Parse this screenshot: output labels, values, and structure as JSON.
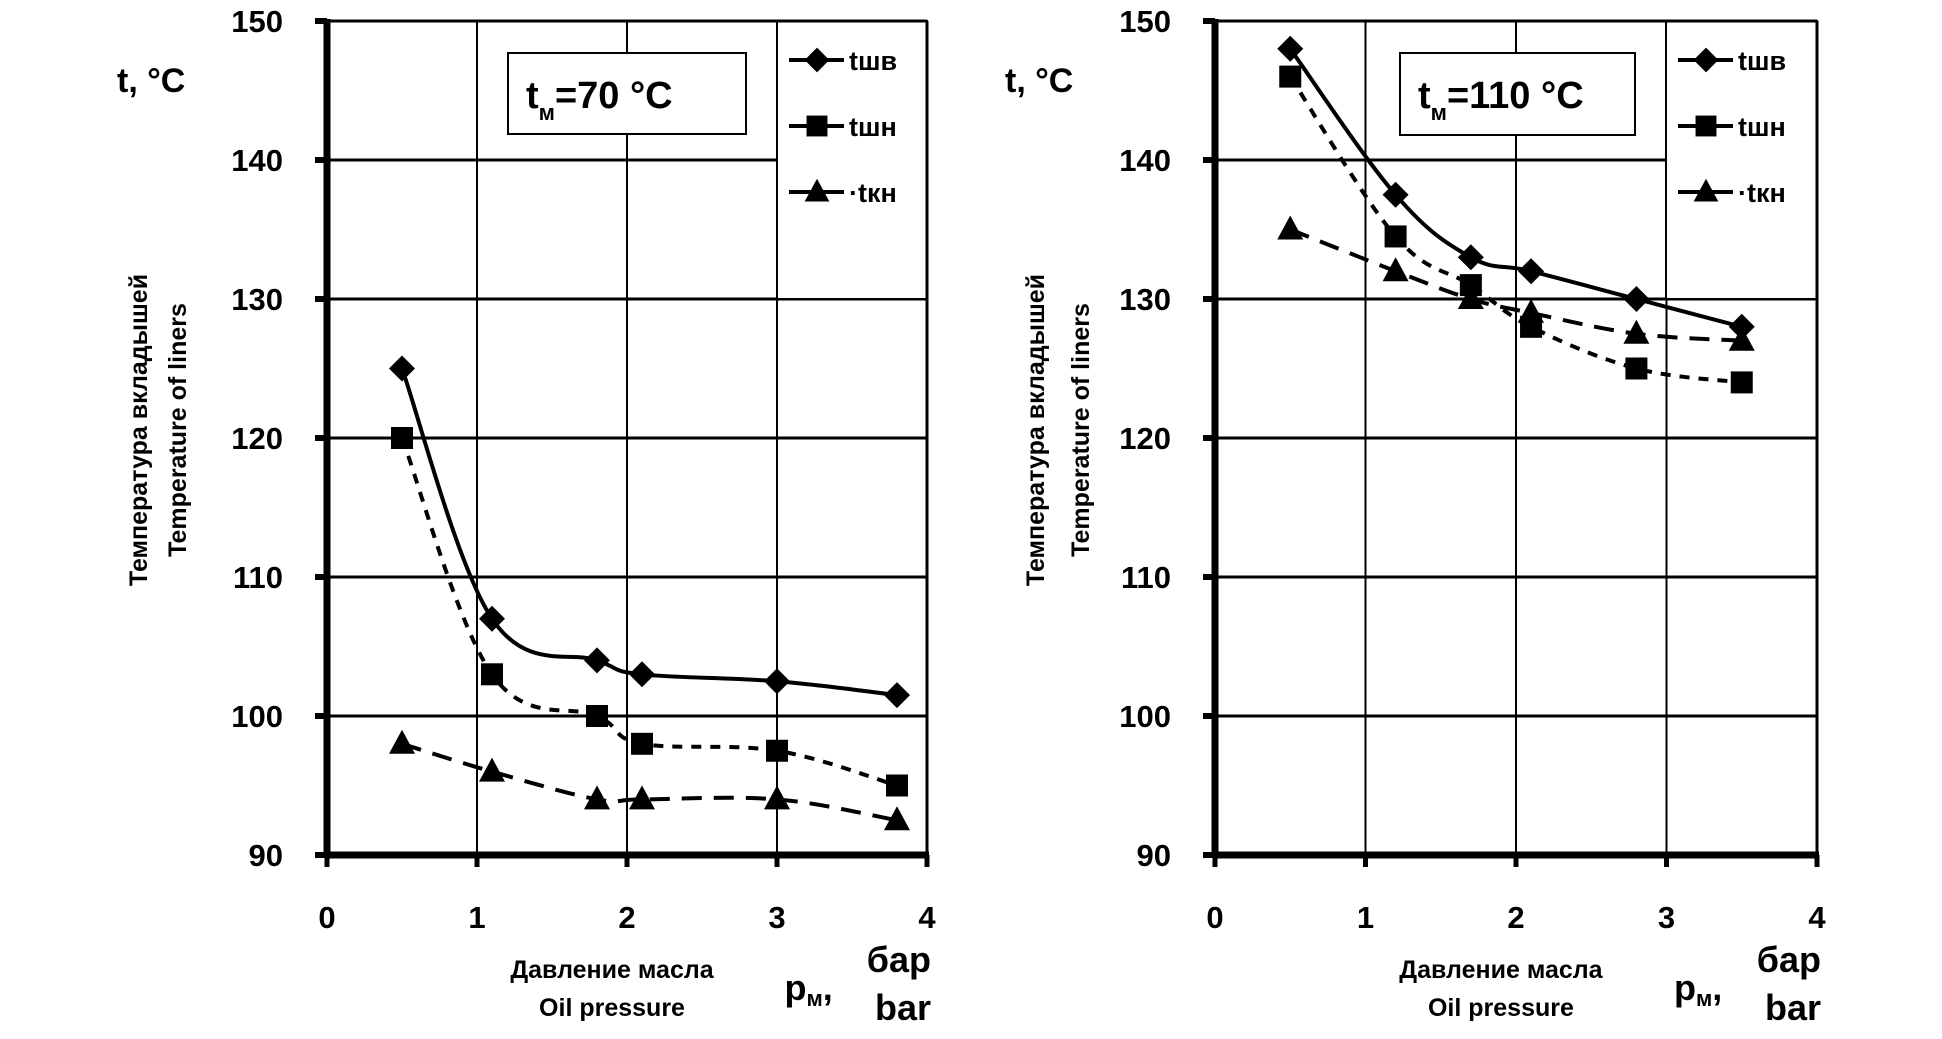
{
  "chart_data": [
    {
      "type": "line",
      "title": "",
      "annotation": {
        "main": "t",
        "subscript": "м",
        "rest": "=70 °C"
      },
      "ylabel_unit": "t, °C",
      "ylabel_lines": [
        "Температура вкладышей",
        "Temperature of liners"
      ],
      "xlabel_lines": [
        "Давление масла",
        "Oil pressure"
      ],
      "xlabel_symbol": {
        "main": "p",
        "subscript": "м",
        "rest": ","
      },
      "xlabel_units": [
        "бар",
        "bar"
      ],
      "xlim": [
        0,
        4
      ],
      "ylim": [
        90,
        150
      ],
      "xticks": [
        "0",
        "1",
        "2",
        "3",
        "4"
      ],
      "yticks": [
        "90",
        "100",
        "110",
        "120",
        "130",
        "140",
        "150"
      ],
      "grid": true,
      "legend_position": "top-right",
      "series": [
        {
          "name": "tшв",
          "marker": "diamond",
          "line": "solid",
          "x": [
            0.5,
            1.1,
            1.8,
            2.1,
            3.0,
            3.8
          ],
          "values": [
            125,
            107,
            104,
            103,
            102.5,
            101.5
          ]
        },
        {
          "name": "tшн",
          "marker": "square",
          "line": "short-dash",
          "x": [
            0.5,
            1.1,
            1.8,
            2.1,
            3.0,
            3.8
          ],
          "values": [
            120,
            103,
            100,
            98,
            97.5,
            95
          ]
        },
        {
          "name": "tкн",
          "marker": "triangle",
          "line": "long-dash",
          "x": [
            0.5,
            1.1,
            1.8,
            2.1,
            3.0,
            3.8
          ],
          "values": [
            98,
            96,
            94,
            94,
            94,
            92.5
          ]
        }
      ]
    },
    {
      "type": "line",
      "title": "",
      "annotation": {
        "main": "t",
        "subscript": "м",
        "rest": "=110 °C"
      },
      "ylabel_unit": "t, °C",
      "ylabel_lines": [
        "Температура вкладышей",
        "Temperature of liners"
      ],
      "xlabel_lines": [
        "Давление масла",
        "Oil pressure"
      ],
      "xlabel_symbol": {
        "main": "p",
        "subscript": "м",
        "rest": ","
      },
      "xlabel_units": [
        "бар",
        "bar"
      ],
      "xlim": [
        0,
        4
      ],
      "ylim": [
        90,
        150
      ],
      "xticks": [
        "0",
        "1",
        "2",
        "3",
        "4"
      ],
      "yticks": [
        "90",
        "100",
        "110",
        "120",
        "130",
        "140",
        "150"
      ],
      "grid": true,
      "legend_position": "top-right",
      "series": [
        {
          "name": "tшв",
          "marker": "diamond",
          "line": "solid",
          "x": [
            0.5,
            1.2,
            1.7,
            2.1,
            2.8,
            3.5
          ],
          "values": [
            148,
            137.5,
            133,
            132,
            130,
            128
          ]
        },
        {
          "name": "tшн",
          "marker": "square",
          "line": "short-dash",
          "x": [
            0.5,
            1.2,
            1.7,
            2.1,
            2.8,
            3.5
          ],
          "values": [
            146,
            134.5,
            131,
            128,
            125,
            124
          ]
        },
        {
          "name": "tкн",
          "marker": "triangle",
          "line": "long-dash",
          "x": [
            0.5,
            1.2,
            1.7,
            2.1,
            2.8,
            3.5
          ],
          "values": [
            135,
            132,
            130,
            129,
            127.5,
            127
          ]
        }
      ]
    }
  ]
}
